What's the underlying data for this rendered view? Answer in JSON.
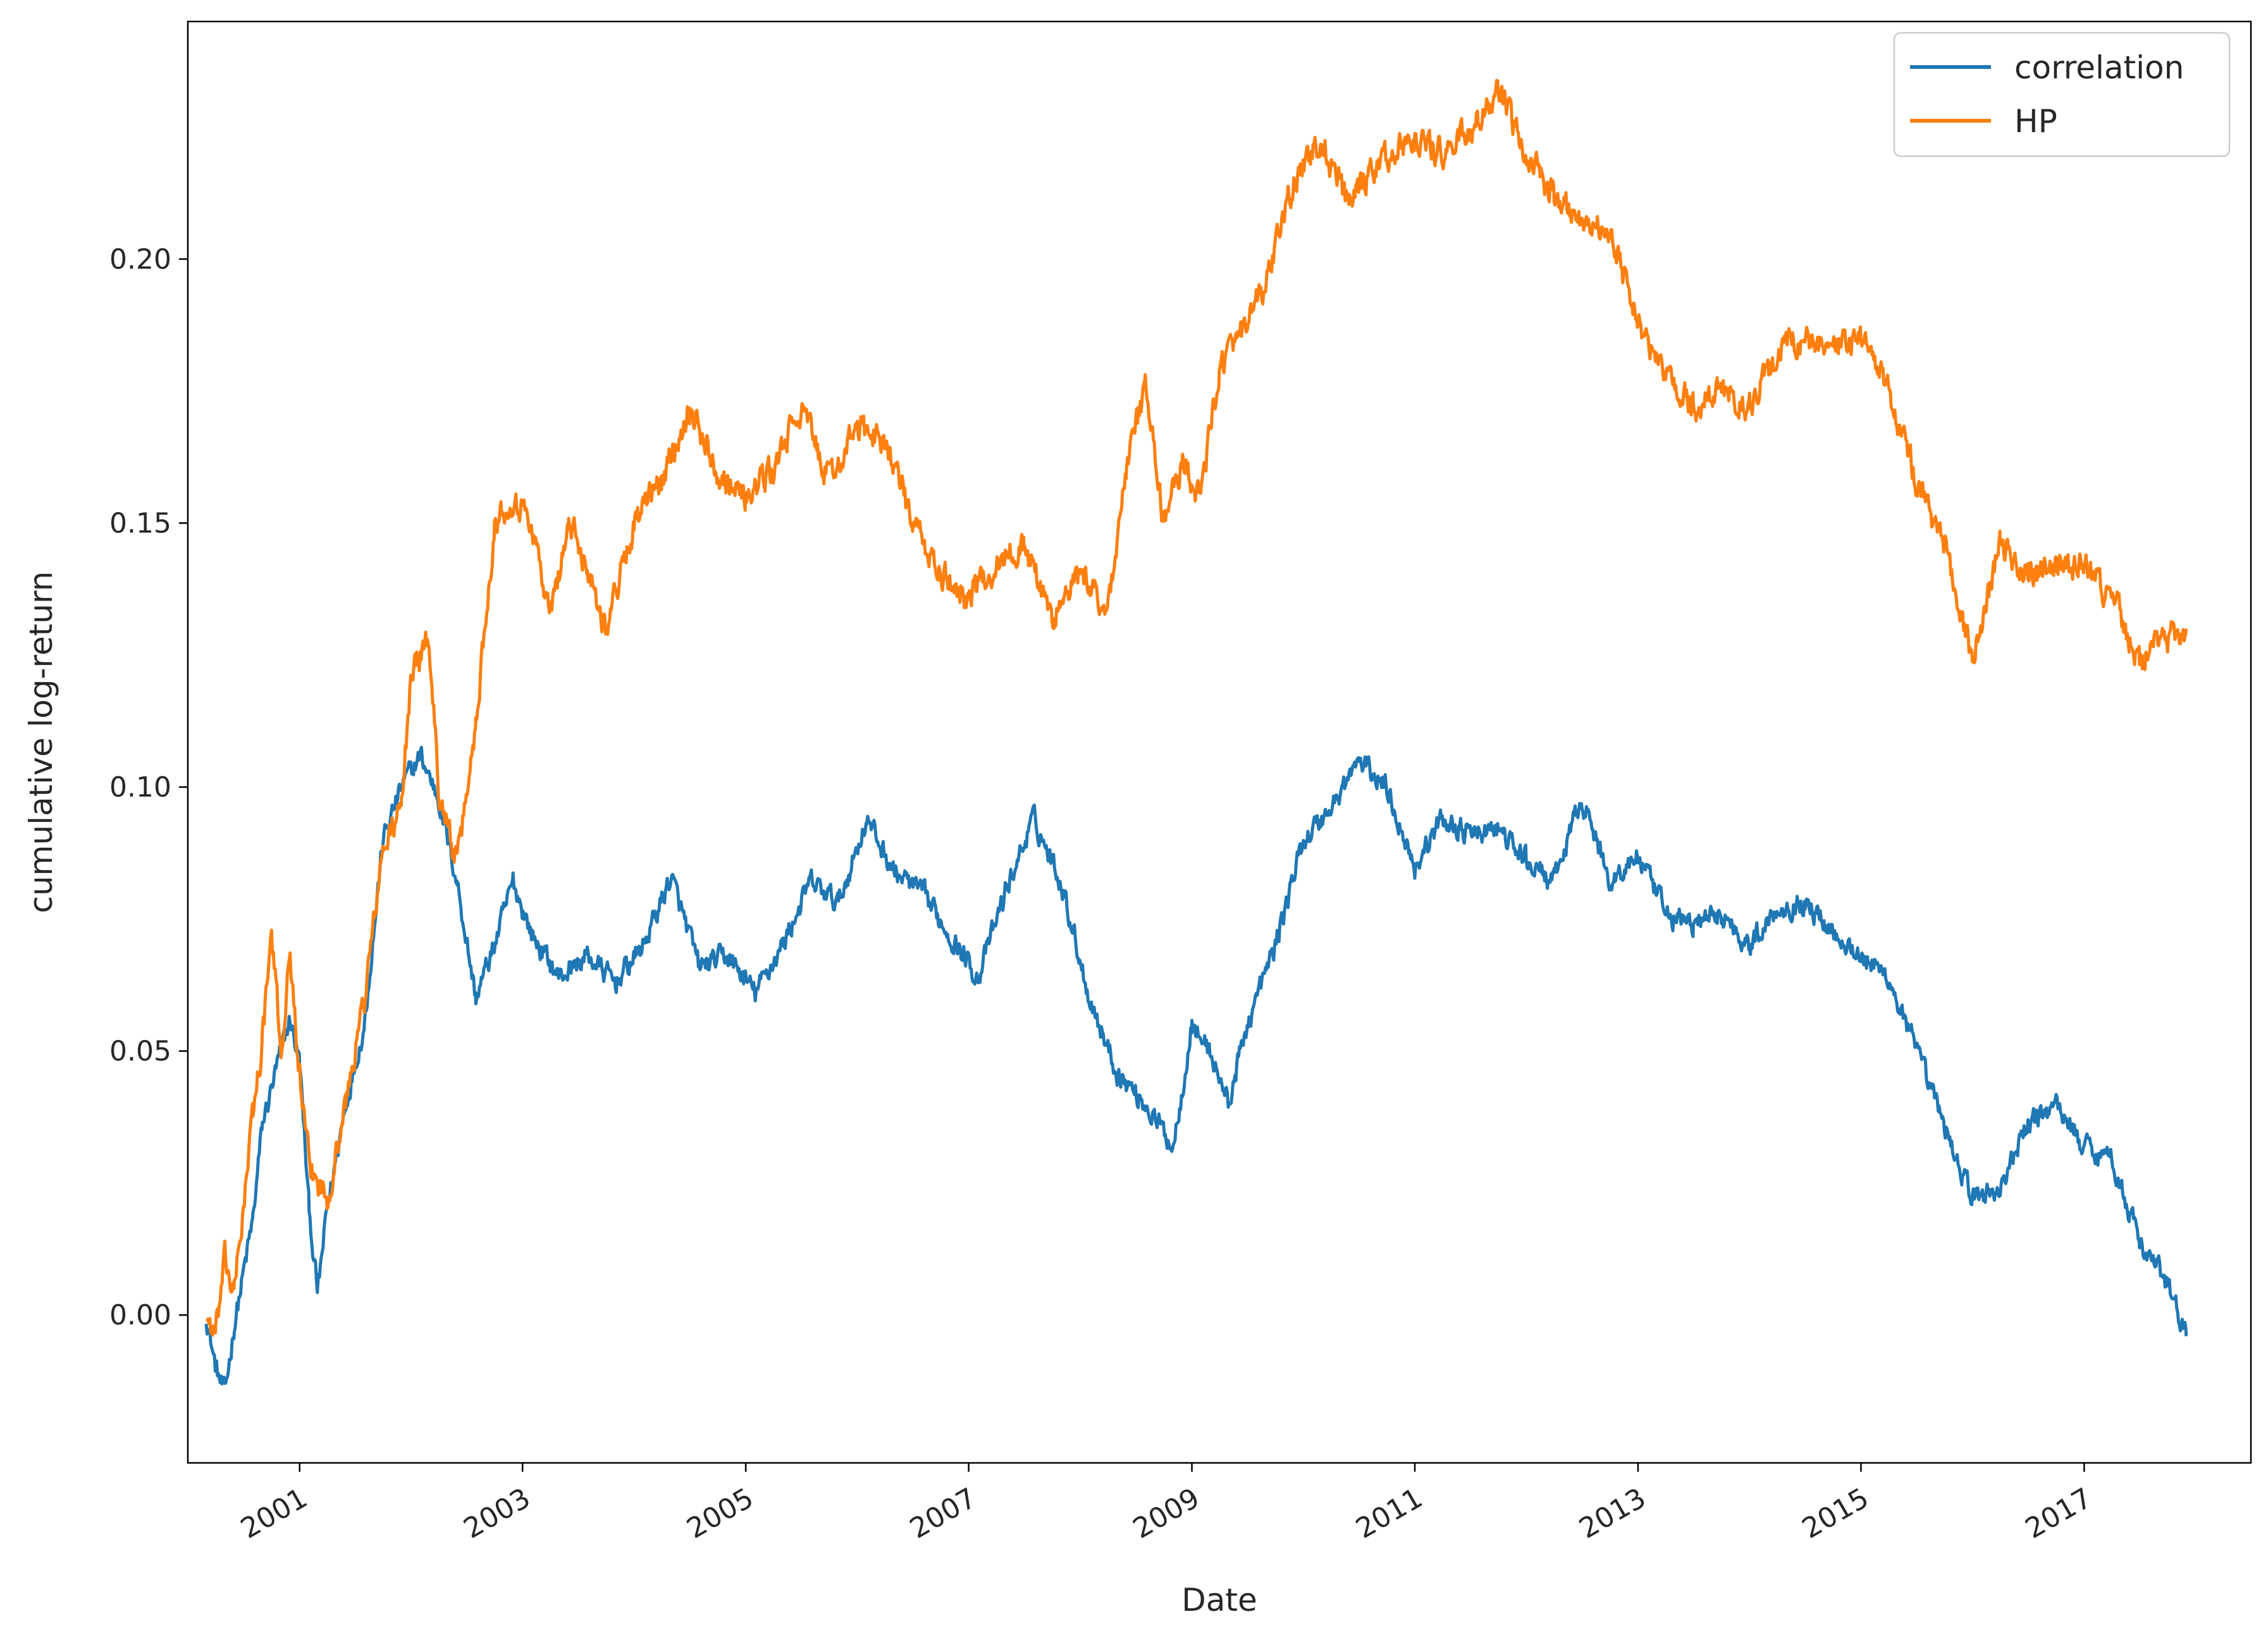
{
  "chart_data": {
    "type": "line",
    "title": "",
    "xlabel": "Date",
    "ylabel": "cumulative log-return",
    "x_ticks": [
      "2001",
      "2003",
      "2005",
      "2007",
      "2009",
      "2011",
      "2013",
      "2015",
      "2017"
    ],
    "y_ticks": [
      "0.00",
      "0.05",
      "0.10",
      "0.15",
      "0.20"
    ],
    "xlim": [
      "2000-01-01",
      "2018-07-01"
    ],
    "ylim": [
      -0.028,
      0.245
    ],
    "legend_position": "top-right",
    "grid": false,
    "series": [
      {
        "name": "correlation",
        "color": "#1f77b4",
        "points": [
          [
            "2000-03-01",
            0.0
          ],
          [
            "2000-04-01",
            -0.01
          ],
          [
            "2000-05-01",
            -0.015
          ],
          [
            "2000-06-01",
            -0.002
          ],
          [
            "2000-08-01",
            0.018
          ],
          [
            "2000-09-01",
            0.036
          ],
          [
            "2000-11-01",
            0.05
          ],
          [
            "2000-12-01",
            0.056
          ],
          [
            "2001-01-01",
            0.048
          ],
          [
            "2001-02-01",
            0.02
          ],
          [
            "2001-03-01",
            0.004
          ],
          [
            "2001-04-01",
            0.02
          ],
          [
            "2001-06-01",
            0.04
          ],
          [
            "2001-08-01",
            0.055
          ],
          [
            "2001-10-01",
            0.09
          ],
          [
            "2001-12-01",
            0.1
          ],
          [
            "2002-02-01",
            0.106
          ],
          [
            "2002-04-01",
            0.098
          ],
          [
            "2002-06-01",
            0.082
          ],
          [
            "2002-08-01",
            0.06
          ],
          [
            "2002-10-01",
            0.07
          ],
          [
            "2002-12-01",
            0.082
          ],
          [
            "2003-02-01",
            0.072
          ],
          [
            "2003-05-01",
            0.064
          ],
          [
            "2003-08-01",
            0.068
          ],
          [
            "2003-11-01",
            0.063
          ],
          [
            "2004-02-01",
            0.07
          ],
          [
            "2004-05-01",
            0.083
          ],
          [
            "2004-08-01",
            0.066
          ],
          [
            "2004-11-01",
            0.068
          ],
          [
            "2005-02-01",
            0.061
          ],
          [
            "2005-05-01",
            0.07
          ],
          [
            "2005-08-01",
            0.082
          ],
          [
            "2005-11-01",
            0.078
          ],
          [
            "2006-02-01",
            0.094
          ],
          [
            "2006-05-01",
            0.084
          ],
          [
            "2006-08-01",
            0.08
          ],
          [
            "2006-11-01",
            0.072
          ],
          [
            "2007-02-01",
            0.064
          ],
          [
            "2007-05-01",
            0.08
          ],
          [
            "2007-08-01",
            0.094
          ],
          [
            "2007-11-01",
            0.082
          ],
          [
            "2008-02-01",
            0.06
          ],
          [
            "2008-05-01",
            0.046
          ],
          [
            "2008-08-01",
            0.04
          ],
          [
            "2008-11-01",
            0.032
          ],
          [
            "2009-01-01",
            0.055
          ],
          [
            "2009-03-01",
            0.05
          ],
          [
            "2009-05-01",
            0.04
          ],
          [
            "2009-07-01",
            0.055
          ],
          [
            "2009-10-01",
            0.07
          ],
          [
            "2010-01-01",
            0.09
          ],
          [
            "2010-04-01",
            0.096
          ],
          [
            "2010-07-01",
            0.105
          ],
          [
            "2010-10-01",
            0.1
          ],
          [
            "2011-01-01",
            0.085
          ],
          [
            "2011-04-01",
            0.094
          ],
          [
            "2011-07-01",
            0.091
          ],
          [
            "2011-10-01",
            0.092
          ],
          [
            "2012-01-01",
            0.086
          ],
          [
            "2012-04-01",
            0.082
          ],
          [
            "2012-07-01",
            0.098
          ],
          [
            "2012-10-01",
            0.082
          ],
          [
            "2013-01-01",
            0.087
          ],
          [
            "2013-04-01",
            0.076
          ],
          [
            "2013-07-01",
            0.074
          ],
          [
            "2013-10-01",
            0.076
          ],
          [
            "2014-01-01",
            0.07
          ],
          [
            "2014-04-01",
            0.077
          ],
          [
            "2014-07-01",
            0.078
          ],
          [
            "2014-10-01",
            0.073
          ],
          [
            "2015-01-01",
            0.068
          ],
          [
            "2015-04-01",
            0.064
          ],
          [
            "2015-07-01",
            0.05
          ],
          [
            "2015-10-01",
            0.036
          ],
          [
            "2016-01-01",
            0.022
          ],
          [
            "2016-04-01",
            0.024
          ],
          [
            "2016-07-01",
            0.036
          ],
          [
            "2016-10-01",
            0.04
          ],
          [
            "2017-01-01",
            0.032
          ],
          [
            "2017-04-01",
            0.03
          ],
          [
            "2017-07-01",
            0.014
          ],
          [
            "2017-10-01",
            0.006
          ],
          [
            "2017-12-01",
            -0.004
          ]
        ]
      },
      {
        "name": "HP",
        "color": "#ff7f0e",
        "points": [
          [
            "2000-03-01",
            0.0
          ],
          [
            "2000-04-01",
            -0.004
          ],
          [
            "2000-05-01",
            0.01
          ],
          [
            "2000-06-01",
            0.004
          ],
          [
            "2000-08-01",
            0.038
          ],
          [
            "2000-09-01",
            0.052
          ],
          [
            "2000-10-01",
            0.072
          ],
          [
            "2000-11-01",
            0.05
          ],
          [
            "2000-12-01",
            0.068
          ],
          [
            "2001-01-01",
            0.045
          ],
          [
            "2001-02-01",
            0.028
          ],
          [
            "2001-04-01",
            0.022
          ],
          [
            "2001-06-01",
            0.04
          ],
          [
            "2001-08-01",
            0.06
          ],
          [
            "2001-10-01",
            0.088
          ],
          [
            "2001-12-01",
            0.096
          ],
          [
            "2002-01-01",
            0.122
          ],
          [
            "2002-03-01",
            0.128
          ],
          [
            "2002-04-01",
            0.1
          ],
          [
            "2002-06-01",
            0.085
          ],
          [
            "2002-08-01",
            0.112
          ],
          [
            "2002-10-01",
            0.15
          ],
          [
            "2002-12-01",
            0.155
          ],
          [
            "2003-02-01",
            0.15
          ],
          [
            "2003-04-01",
            0.132
          ],
          [
            "2003-06-01",
            0.15
          ],
          [
            "2003-08-01",
            0.142
          ],
          [
            "2003-10-01",
            0.13
          ],
          [
            "2004-01-01",
            0.15
          ],
          [
            "2004-04-01",
            0.158
          ],
          [
            "2004-07-01",
            0.172
          ],
          [
            "2004-10-01",
            0.16
          ],
          [
            "2005-01-01",
            0.155
          ],
          [
            "2005-04-01",
            0.16
          ],
          [
            "2005-07-01",
            0.172
          ],
          [
            "2005-10-01",
            0.158
          ],
          [
            "2006-01-01",
            0.168
          ],
          [
            "2006-04-01",
            0.166
          ],
          [
            "2006-07-01",
            0.15
          ],
          [
            "2006-10-01",
            0.14
          ],
          [
            "2007-01-01",
            0.136
          ],
          [
            "2007-04-01",
            0.142
          ],
          [
            "2007-07-01",
            0.146
          ],
          [
            "2007-10-01",
            0.132
          ],
          [
            "2008-01-01",
            0.14
          ],
          [
            "2008-04-01",
            0.134
          ],
          [
            "2008-06-01",
            0.16
          ],
          [
            "2008-08-01",
            0.176
          ],
          [
            "2008-10-01",
            0.15
          ],
          [
            "2008-12-01",
            0.162
          ],
          [
            "2009-02-01",
            0.155
          ],
          [
            "2009-04-01",
            0.18
          ],
          [
            "2009-06-01",
            0.184
          ],
          [
            "2009-09-01",
            0.195
          ],
          [
            "2009-12-01",
            0.215
          ],
          [
            "2010-03-01",
            0.222
          ],
          [
            "2010-06-01",
            0.21
          ],
          [
            "2010-09-01",
            0.218
          ],
          [
            "2011-01-01",
            0.223
          ],
          [
            "2011-04-01",
            0.22
          ],
          [
            "2011-07-01",
            0.224
          ],
          [
            "2011-10-01",
            0.231
          ],
          [
            "2012-01-01",
            0.22
          ],
          [
            "2012-04-01",
            0.212
          ],
          [
            "2012-07-01",
            0.208
          ],
          [
            "2012-10-01",
            0.205
          ],
          [
            "2013-01-01",
            0.188
          ],
          [
            "2013-04-01",
            0.178
          ],
          [
            "2013-07-01",
            0.172
          ],
          [
            "2013-10-01",
            0.175
          ],
          [
            "2014-01-01",
            0.172
          ],
          [
            "2014-04-01",
            0.182
          ],
          [
            "2014-07-01",
            0.185
          ],
          [
            "2014-10-01",
            0.183
          ],
          [
            "2015-01-01",
            0.185
          ],
          [
            "2015-04-01",
            0.175
          ],
          [
            "2015-07-01",
            0.158
          ],
          [
            "2015-10-01",
            0.146
          ],
          [
            "2016-01-01",
            0.124
          ],
          [
            "2016-04-01",
            0.146
          ],
          [
            "2016-07-01",
            0.14
          ],
          [
            "2016-10-01",
            0.141
          ],
          [
            "2017-01-01",
            0.142
          ],
          [
            "2017-04-01",
            0.136
          ],
          [
            "2017-07-01",
            0.124
          ],
          [
            "2017-10-01",
            0.128
          ],
          [
            "2017-12-01",
            0.13
          ]
        ]
      }
    ]
  }
}
